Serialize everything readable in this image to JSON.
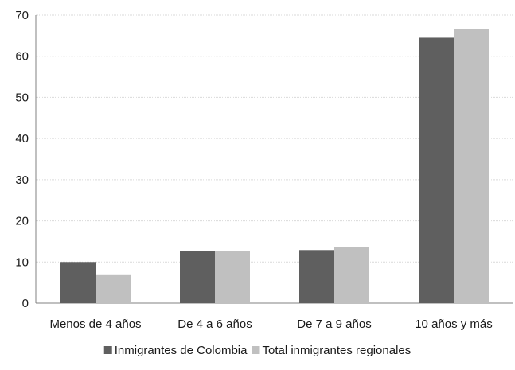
{
  "chart_data": {
    "type": "bar",
    "categories": [
      "Menos de 4 años",
      "De 4 a 6 años",
      "De 7 a 9 años",
      "10 años y más"
    ],
    "series": [
      {
        "name": "Inmigrantes de Colombia",
        "color": "#5f5f5f",
        "values": [
          10.0,
          12.7,
          12.9,
          64.5
        ]
      },
      {
        "name": "Total inmigrantes regionales",
        "color": "#c0c0c0",
        "values": [
          7.0,
          12.7,
          13.7,
          66.7
        ]
      }
    ],
    "ylim": [
      0,
      70
    ],
    "yticks": [
      0,
      10,
      20,
      30,
      40,
      50,
      60,
      70
    ],
    "grid": true,
    "legend_position": "bottom"
  }
}
